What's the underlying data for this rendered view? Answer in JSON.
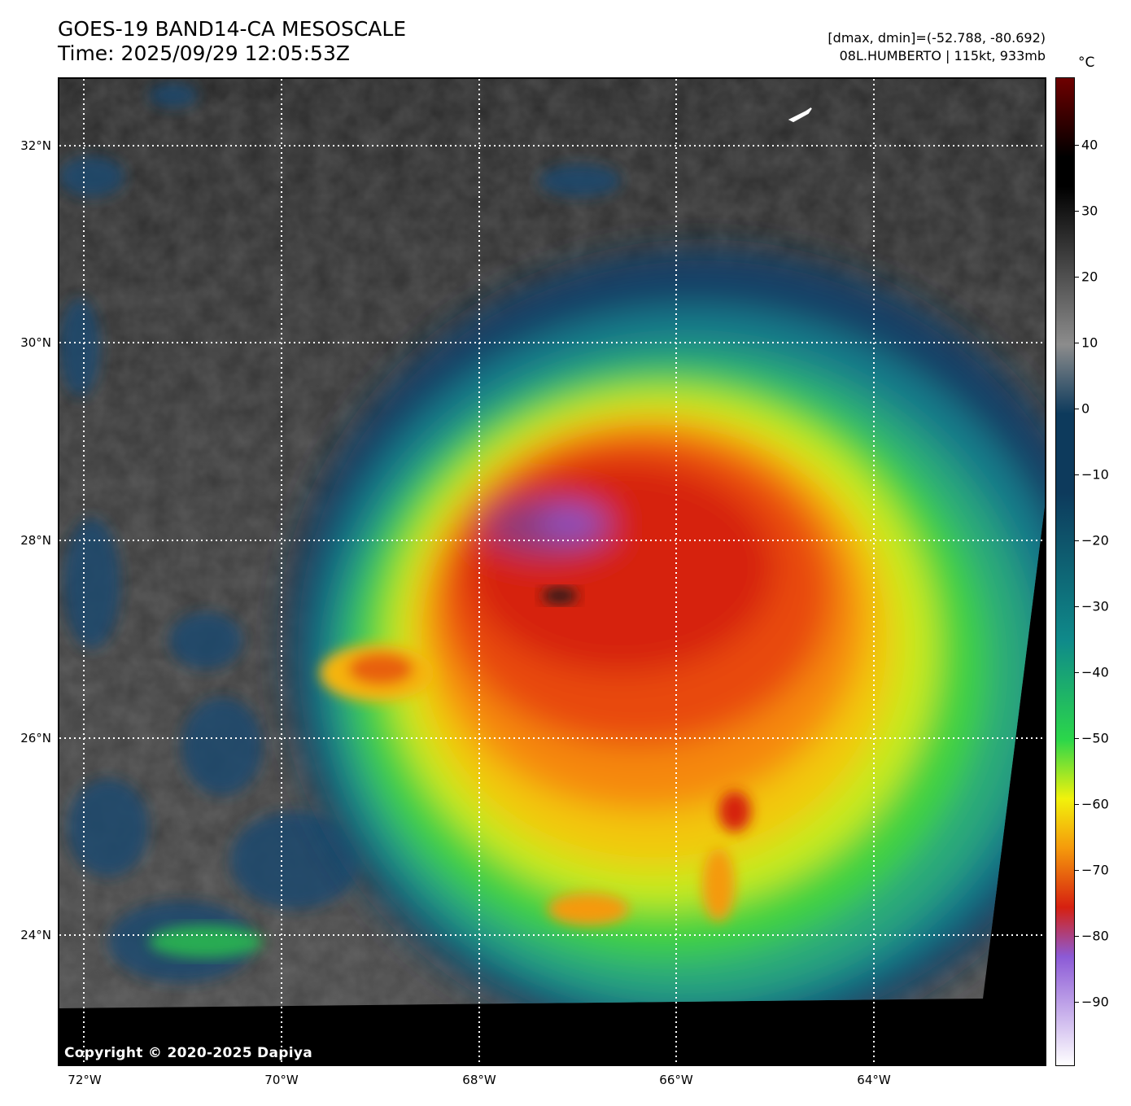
{
  "header": {
    "title_line1": "GOES-19 BAND14-CA MESOSCALE",
    "title_line2": "Time: 2025/09/29 12:05:53Z",
    "info_line1": "[dmax, dmin]=(-52.788, -80.692)",
    "info_line2": "08L.HUMBERTO | 115kt, 933mb"
  },
  "map": {
    "copyright": "Copyright © 2020-2025 Dapiya",
    "lat_labels": [
      "32°N",
      "30°N",
      "28°N",
      "26°N",
      "24°N"
    ],
    "lon_labels": [
      "72°W",
      "70°W",
      "68°W",
      "66°W",
      "64°W"
    ]
  },
  "colorbar": {
    "unit": "°C",
    "ticks": [
      "40",
      "30",
      "20",
      "10",
      "0",
      "−10",
      "−20",
      "−30",
      "−40",
      "−50",
      "−60",
      "−70",
      "−80",
      "−90"
    ],
    "colors": {
      "warm_top": "#6e0000",
      "black": "#000000",
      "gray": "#8c8c8c",
      "dark_blue": "#0d3a5c",
      "teal": "#0f8a8a",
      "green": "#2bd64a",
      "yellow": "#f2f20c",
      "orange": "#f59a0c",
      "red": "#d62010",
      "purple": "#8c5ad6",
      "white": "#ffffff"
    }
  }
}
